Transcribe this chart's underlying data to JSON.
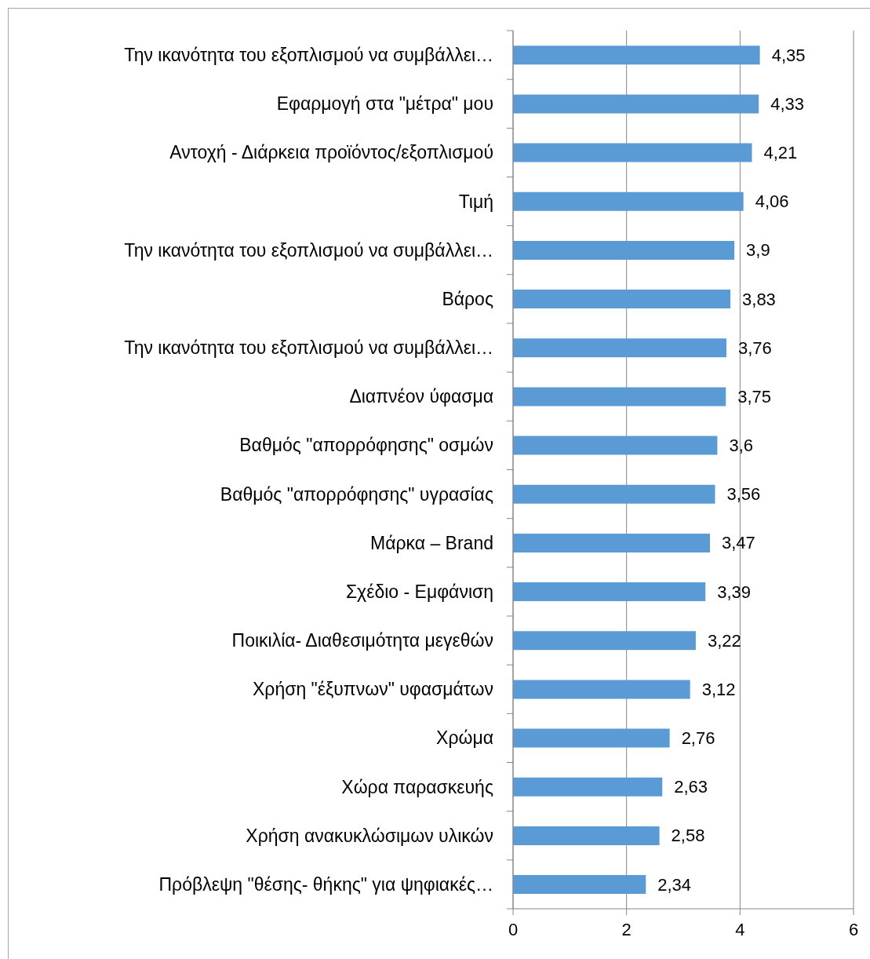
{
  "chart_data": {
    "type": "bar",
    "orientation": "horizontal",
    "categories": [
      "Την ικανότητα του εξοπλισμού να συμβάλλει…",
      "Εφαρμογή στα \"μέτρα\" μου",
      "Αντοχή - Διάρκεια προϊόντος/εξοπλισμού",
      "Τιμή",
      "Την ικανότητα του εξοπλισμού να συμβάλλει…",
      "Βάρος",
      "Την ικανότητα του εξοπλισμού να συμβάλλει…",
      "Διαπνέον ύφασμα",
      "Βαθμός \"απορρόφησης\" οσμών",
      "Βαθμός \"απορρόφησης\" υγρασίας",
      "Μάρκα – Brand",
      "Σχέδιο - Εμφάνιση",
      "Ποικιλία- Διαθεσιμότητα μεγεθών",
      "Χρήση \"έξυπνων\" υφασμάτων",
      "Χρώμα",
      "Χώρα παρασκευής",
      "Χρήση ανακυκλώσιμων υλικών",
      "Πρόβλεψη \"θέσης- θήκης\" για ψηφιακές…"
    ],
    "values": [
      4.35,
      4.33,
      4.21,
      4.06,
      3.9,
      3.83,
      3.76,
      3.75,
      3.6,
      3.56,
      3.47,
      3.39,
      3.22,
      3.12,
      2.76,
      2.63,
      2.58,
      2.34
    ],
    "value_labels": [
      "4,35",
      "4,33",
      "4,21",
      "4,06",
      "3,9",
      "3,83",
      "3,76",
      "3,75",
      "3,6",
      "3,56",
      "3,47",
      "3,39",
      "3,22",
      "3,12",
      "2,76",
      "2,63",
      "2,58",
      "2,34"
    ],
    "color": "#5b9bd5",
    "xlim": [
      0,
      6
    ],
    "xticks": [
      0,
      2,
      4,
      6
    ],
    "grid": "x"
  }
}
